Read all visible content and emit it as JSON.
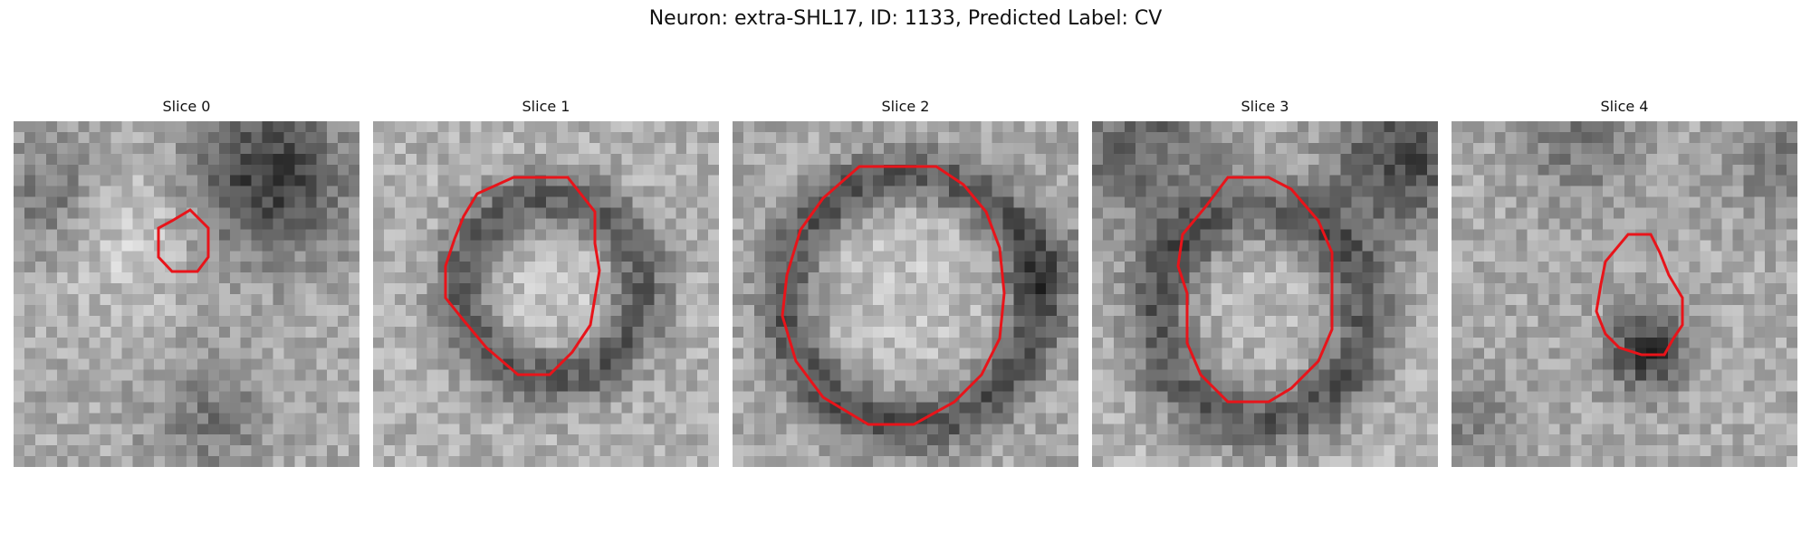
{
  "title": "Neuron: extra-SHL17, ID: 1133, Predicted Label: CV",
  "slices": [
    {
      "label": "Slice 0"
    },
    {
      "label": "Slice 1"
    },
    {
      "label": "Slice 2"
    },
    {
      "label": "Slice 3"
    },
    {
      "label": "Slice 4"
    }
  ],
  "colors": {
    "contour": "#e8141a",
    "image_cmap": "grayscale"
  }
}
